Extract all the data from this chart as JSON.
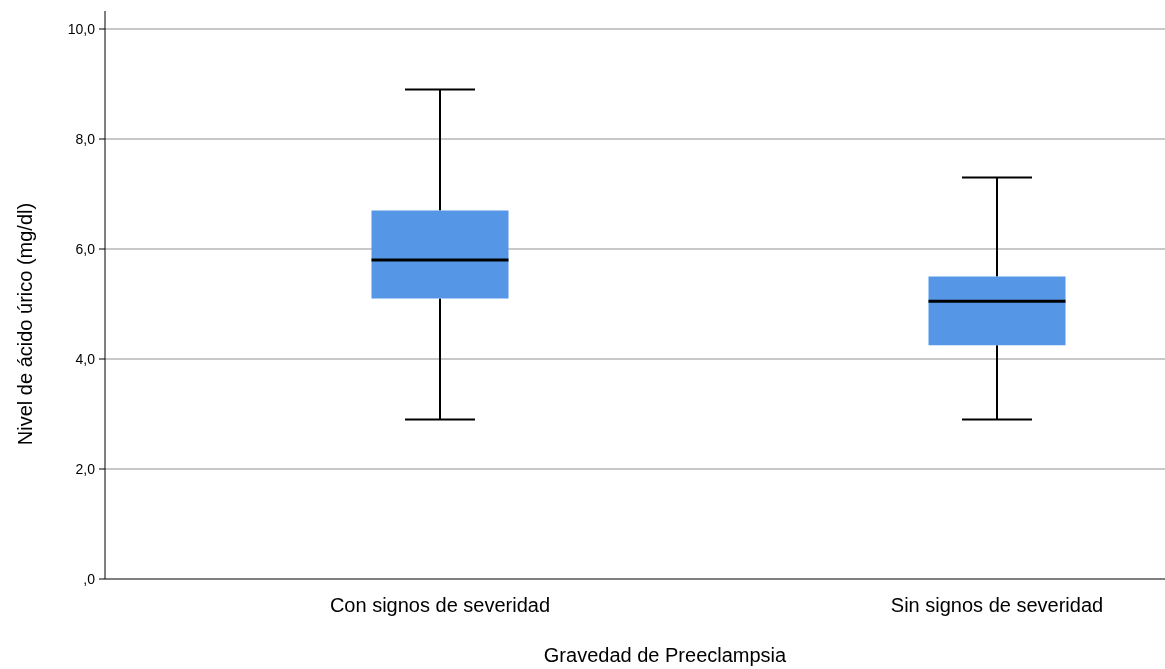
{
  "chart_data": {
    "type": "box",
    "xlabel": "Gravedad de Preeclampsia",
    "ylabel": "Nivel de ácido úrico (mg/dl)",
    "categories": [
      "Con signos de severidad",
      "Sin signos de severidad"
    ],
    "color": "#5596e6",
    "boxes": [
      {
        "low": 2.9,
        "q1": 5.1,
        "median": 5.8,
        "q3": 6.7,
        "high": 8.9
      },
      {
        "low": 2.9,
        "q1": 4.25,
        "median": 5.05,
        "q3": 5.5,
        "high": 7.3
      }
    ],
    "ylim": [
      0,
      10
    ],
    "yticks": [
      {
        "value": 0,
        "label": ",0"
      },
      {
        "value": 2,
        "label": "2,0"
      },
      {
        "value": 4,
        "label": "4,0"
      },
      {
        "value": 6,
        "label": "6,0"
      },
      {
        "value": 8,
        "label": "8,0"
      },
      {
        "value": 10,
        "label": "10,0"
      }
    ],
    "grid": "y"
  }
}
